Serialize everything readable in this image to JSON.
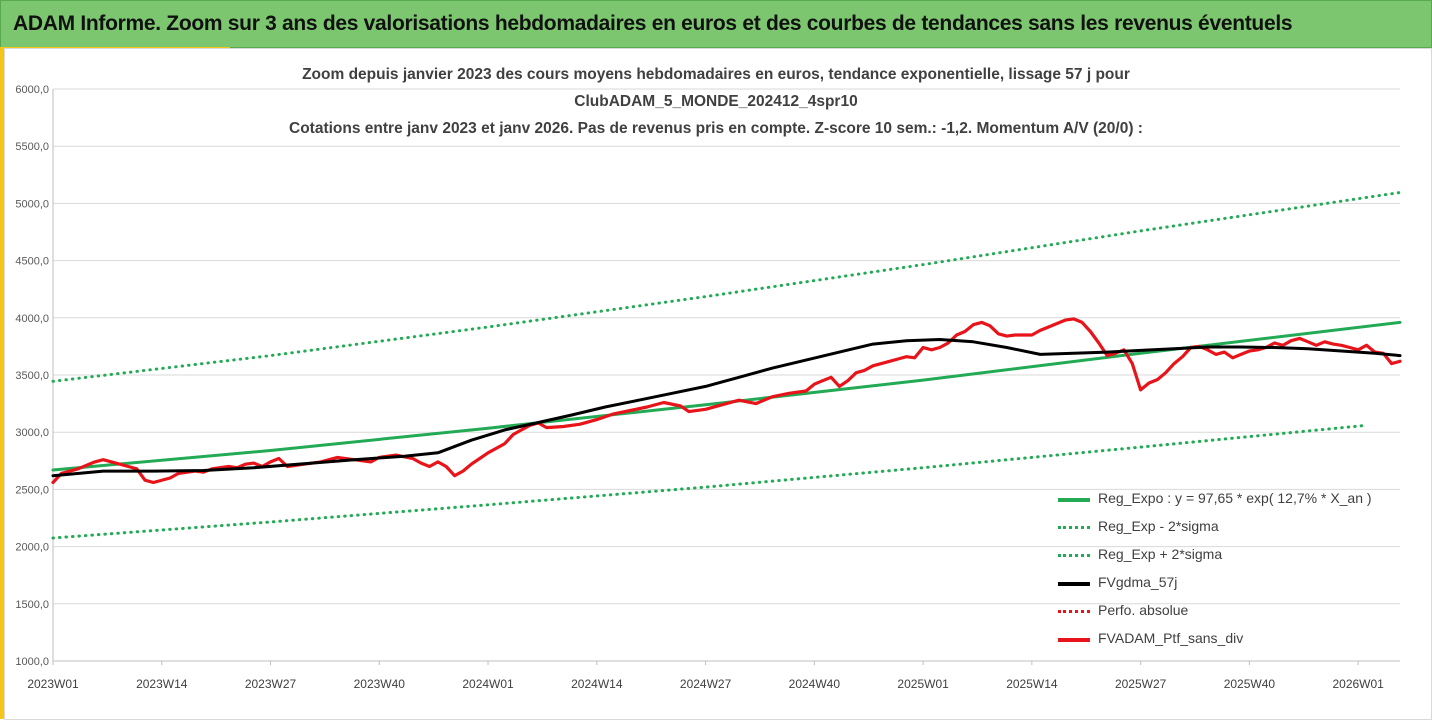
{
  "banner": {
    "title": "ADAM Informe. Zoom sur 3 ans des valorisations hebdomadaires en euros et des courbes de tendances sans les revenus éventuels"
  },
  "colors": {
    "banner_bg": "#7cc66f",
    "accent_yellow": "#f5c518",
    "trend_green": "#22aa55",
    "smooth_black": "#000000",
    "price_red": "#e8141a",
    "grid": "#d9d9d9"
  },
  "chart_data": {
    "type": "line",
    "title_lines": [
      "Zoom depuis janvier 2023 des cours moyens hebdomadaires  en euros, tendance exponentielle, lissage 57 j pour",
      "ClubADAM_5_MONDE_202412_4spr10",
      "Cotations entre janv 2023 et janv 2026. Pas de revenus pris en compte. Z-score 10 sem.: -1,2. Momentum A/V (20/0) :"
    ],
    "ylim": [
      1000,
      6000
    ],
    "y_ticks": [
      "1000,0",
      "1500,0",
      "2000,0",
      "2500,0",
      "3000,0",
      "3500,0",
      "4000,0",
      "4500,0",
      "5000,0",
      "5500,0",
      "6000,0"
    ],
    "x_tick_labels": [
      "2023W01",
      "2023W14",
      "2023W27",
      "2023W40",
      "2024W01",
      "2024W14",
      "2024W27",
      "2024W40",
      "2025W01",
      "2025W14",
      "2025W27",
      "2025W40",
      "2026W01"
    ],
    "x_tick_step_weeks": 13,
    "total_weeks": 161,
    "grid": "horizontal",
    "legend_position": "bottom-right",
    "series": [
      {
        "name": "Reg_Expo : y = 97,65 * exp( 12,7% *  X_an )",
        "style": "solid",
        "color": "#22aa55",
        "points": [
          [
            0,
            2670
          ],
          [
            26,
            2840
          ],
          [
            52,
            3035
          ],
          [
            78,
            3240
          ],
          [
            104,
            3455
          ],
          [
            130,
            3690
          ],
          [
            161,
            3960
          ]
        ]
      },
      {
        "name": "Reg_Exp - 2*sigma",
        "style": "dotted",
        "color": "#22aa55",
        "points": [
          [
            0,
            2075
          ],
          [
            26,
            2215
          ],
          [
            52,
            2365
          ],
          [
            78,
            2520
          ],
          [
            104,
            2690
          ],
          [
            130,
            2870
          ],
          [
            157,
            3060
          ]
        ]
      },
      {
        "name": "Reg_Exp + 2*sigma",
        "style": "dotted",
        "color": "#22aa55",
        "points": [
          [
            0,
            3445
          ],
          [
            26,
            3670
          ],
          [
            52,
            3920
          ],
          [
            78,
            4185
          ],
          [
            104,
            4465
          ],
          [
            130,
            4760
          ],
          [
            161,
            5095
          ]
        ]
      },
      {
        "name": "FVgdma_57j",
        "style": "solid",
        "color": "#000000",
        "points": [
          [
            0,
            2620
          ],
          [
            6,
            2660
          ],
          [
            12,
            2660
          ],
          [
            18,
            2665
          ],
          [
            24,
            2690
          ],
          [
            30,
            2725
          ],
          [
            36,
            2760
          ],
          [
            42,
            2790
          ],
          [
            46,
            2820
          ],
          [
            50,
            2930
          ],
          [
            54,
            3020
          ],
          [
            58,
            3085
          ],
          [
            62,
            3150
          ],
          [
            66,
            3220
          ],
          [
            70,
            3280
          ],
          [
            74,
            3340
          ],
          [
            78,
            3400
          ],
          [
            82,
            3480
          ],
          [
            86,
            3560
          ],
          [
            90,
            3630
          ],
          [
            94,
            3700
          ],
          [
            98,
            3770
          ],
          [
            102,
            3800
          ],
          [
            106,
            3810
          ],
          [
            110,
            3790
          ],
          [
            114,
            3740
          ],
          [
            118,
            3680
          ],
          [
            122,
            3690
          ],
          [
            126,
            3700
          ],
          [
            130,
            3715
          ],
          [
            134,
            3730
          ],
          [
            138,
            3745
          ],
          [
            142,
            3745
          ],
          [
            146,
            3740
          ],
          [
            150,
            3730
          ],
          [
            154,
            3710
          ],
          [
            158,
            3690
          ],
          [
            161,
            3670
          ]
        ]
      },
      {
        "name": "Perfo. absolue",
        "style": "dotted",
        "color": "#e8141a",
        "points": []
      },
      {
        "name": "FVADAM_Ptf_sans_div",
        "style": "solid",
        "color": "#e8141a",
        "points": [
          [
            0,
            2560
          ],
          [
            1,
            2640
          ],
          [
            3,
            2680
          ],
          [
            5,
            2740
          ],
          [
            6,
            2760
          ],
          [
            8,
            2720
          ],
          [
            9,
            2700
          ],
          [
            10,
            2680
          ],
          [
            11,
            2580
          ],
          [
            12,
            2560
          ],
          [
            14,
            2600
          ],
          [
            15,
            2640
          ],
          [
            17,
            2660
          ],
          [
            18,
            2650
          ],
          [
            19,
            2680
          ],
          [
            21,
            2700
          ],
          [
            22,
            2690
          ],
          [
            23,
            2720
          ],
          [
            24,
            2730
          ],
          [
            25,
            2700
          ],
          [
            26,
            2740
          ],
          [
            27,
            2770
          ],
          [
            28,
            2700
          ],
          [
            30,
            2720
          ],
          [
            32,
            2740
          ],
          [
            34,
            2780
          ],
          [
            36,
            2760
          ],
          [
            38,
            2740
          ],
          [
            39,
            2780
          ],
          [
            41,
            2800
          ],
          [
            43,
            2770
          ],
          [
            44,
            2730
          ],
          [
            45,
            2700
          ],
          [
            46,
            2740
          ],
          [
            47,
            2700
          ],
          [
            48,
            2620
          ],
          [
            49,
            2660
          ],
          [
            50,
            2720
          ],
          [
            51,
            2770
          ],
          [
            52,
            2820
          ],
          [
            54,
            2900
          ],
          [
            55,
            2980
          ],
          [
            56,
            3020
          ],
          [
            57,
            3060
          ],
          [
            58,
            3080
          ],
          [
            59,
            3040
          ],
          [
            61,
            3050
          ],
          [
            63,
            3070
          ],
          [
            65,
            3110
          ],
          [
            67,
            3160
          ],
          [
            69,
            3190
          ],
          [
            71,
            3220
          ],
          [
            73,
            3260
          ],
          [
            75,
            3230
          ],
          [
            76,
            3180
          ],
          [
            78,
            3200
          ],
          [
            80,
            3240
          ],
          [
            82,
            3280
          ],
          [
            84,
            3250
          ],
          [
            86,
            3310
          ],
          [
            88,
            3340
          ],
          [
            90,
            3360
          ],
          [
            91,
            3420
          ],
          [
            92,
            3450
          ],
          [
            93,
            3480
          ],
          [
            94,
            3400
          ],
          [
            95,
            3450
          ],
          [
            96,
            3520
          ],
          [
            97,
            3540
          ],
          [
            98,
            3580
          ],
          [
            99,
            3600
          ],
          [
            100,
            3620
          ],
          [
            101,
            3640
          ],
          [
            102,
            3660
          ],
          [
            103,
            3650
          ],
          [
            104,
            3740
          ],
          [
            105,
            3720
          ],
          [
            106,
            3740
          ],
          [
            107,
            3780
          ],
          [
            108,
            3850
          ],
          [
            109,
            3880
          ],
          [
            110,
            3940
          ],
          [
            111,
            3960
          ],
          [
            112,
            3930
          ],
          [
            113,
            3860
          ],
          [
            114,
            3840
          ],
          [
            115,
            3850
          ],
          [
            116,
            3850
          ],
          [
            117,
            3850
          ],
          [
            118,
            3890
          ],
          [
            119,
            3920
          ],
          [
            120,
            3950
          ],
          [
            121,
            3980
          ],
          [
            122,
            3990
          ],
          [
            123,
            3960
          ],
          [
            124,
            3880
          ],
          [
            125,
            3780
          ],
          [
            126,
            3670
          ],
          [
            127,
            3690
          ],
          [
            128,
            3720
          ],
          [
            129,
            3600
          ],
          [
            130,
            3370
          ],
          [
            131,
            3430
          ],
          [
            132,
            3460
          ],
          [
            133,
            3520
          ],
          [
            134,
            3600
          ],
          [
            135,
            3660
          ],
          [
            136,
            3740
          ],
          [
            137,
            3750
          ],
          [
            138,
            3720
          ],
          [
            139,
            3680
          ],
          [
            140,
            3700
          ],
          [
            141,
            3650
          ],
          [
            142,
            3680
          ],
          [
            143,
            3710
          ],
          [
            144,
            3720
          ],
          [
            145,
            3740
          ],
          [
            146,
            3780
          ],
          [
            147,
            3760
          ],
          [
            148,
            3800
          ],
          [
            149,
            3820
          ],
          [
            150,
            3790
          ],
          [
            151,
            3760
          ],
          [
            152,
            3790
          ],
          [
            153,
            3770
          ],
          [
            154,
            3760
          ],
          [
            155,
            3740
          ],
          [
            156,
            3720
          ],
          [
            157,
            3760
          ],
          [
            158,
            3700
          ],
          [
            159,
            3690
          ],
          [
            160,
            3600
          ],
          [
            161,
            3620
          ]
        ]
      }
    ]
  }
}
